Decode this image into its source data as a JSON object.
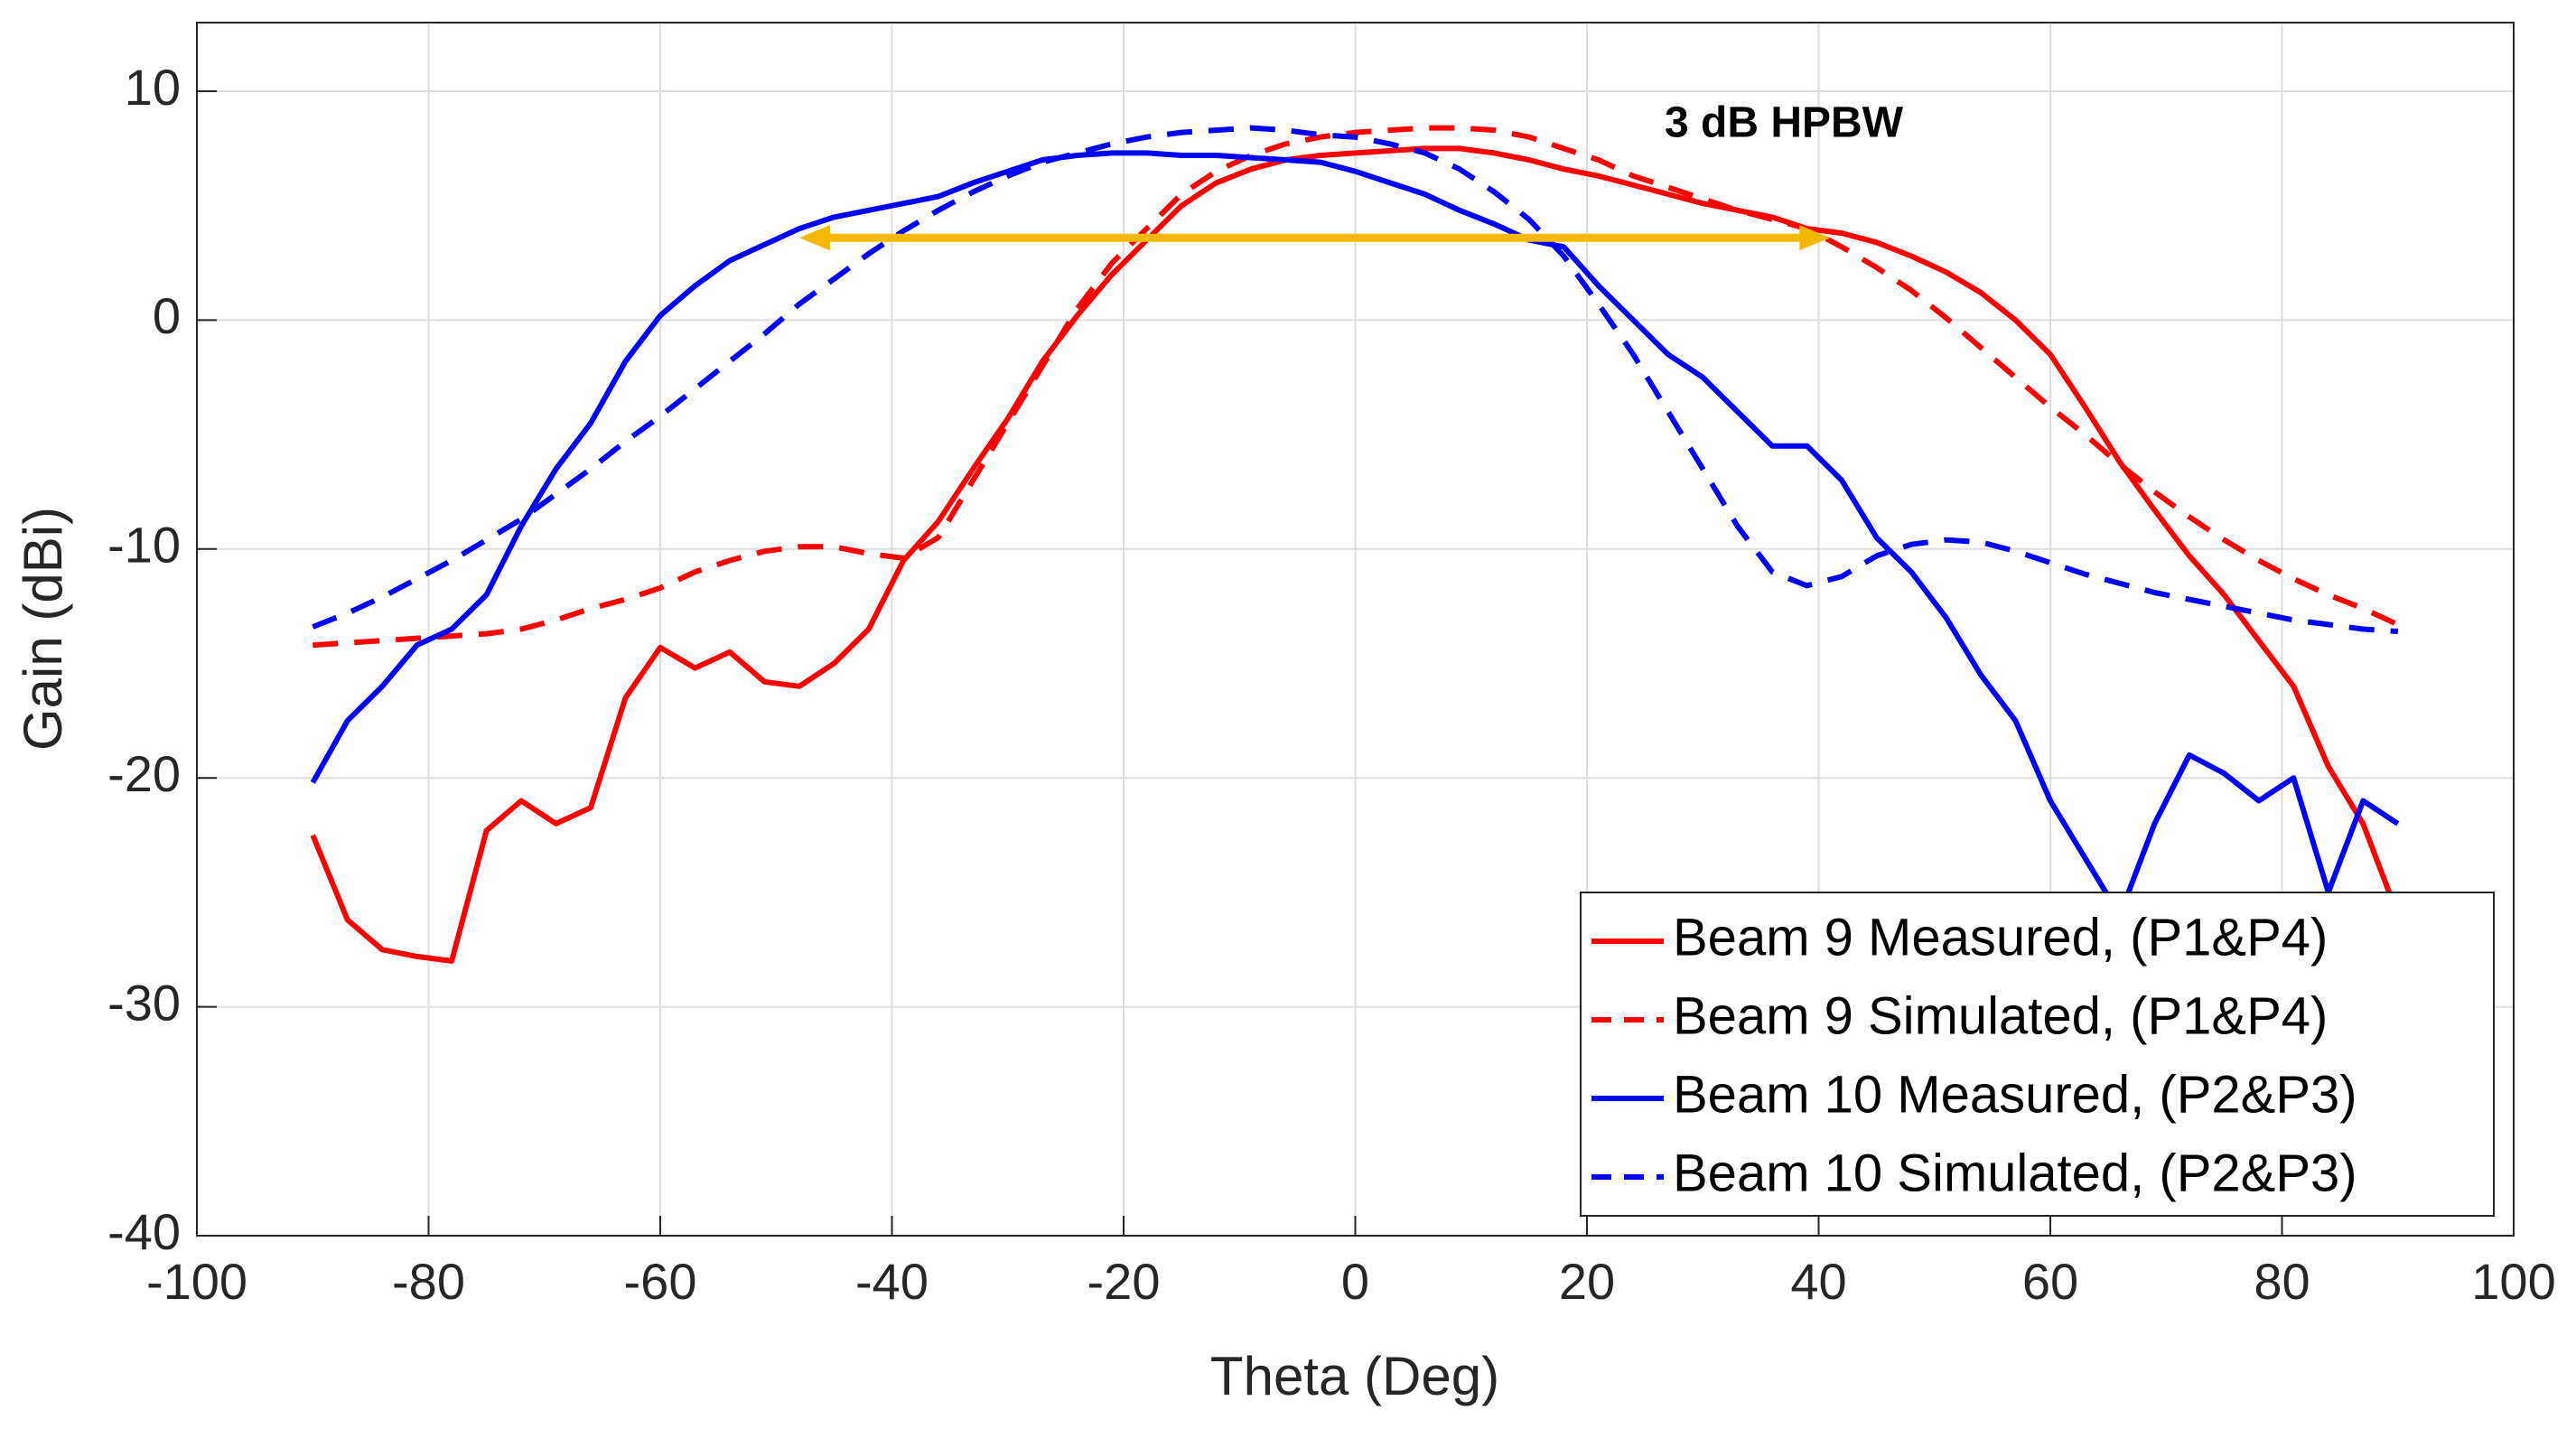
{
  "chart_data": {
    "type": "line",
    "xlabel": "Theta (Deg)",
    "ylabel": "Gain (dBi)",
    "x": [
      -90,
      -87,
      -84,
      -81,
      -78,
      -75,
      -72,
      -69,
      -66,
      -63,
      -60,
      -57,
      -54,
      -51,
      -48,
      -45,
      -42,
      -39,
      -36,
      -33,
      -30,
      -27,
      -24,
      -21,
      -18,
      -15,
      -12,
      -9,
      -6,
      -3,
      0,
      3,
      6,
      9,
      12,
      15,
      18,
      21,
      24,
      27,
      30,
      33,
      36,
      39,
      42,
      45,
      48,
      51,
      54,
      57,
      60,
      63,
      66,
      69,
      72,
      75,
      78,
      81,
      84,
      87,
      90
    ],
    "series": [
      {
        "name": "Beam 9 Measured, (P1&P4)",
        "color": "#ff0000",
        "dash": false,
        "values": [
          -22.5,
          -26.2,
          -27.5,
          -27.8,
          -28,
          -22.3,
          -21,
          -22,
          -21.3,
          -16.5,
          -14.3,
          -15.2,
          -14.5,
          -15.8,
          -16,
          -15,
          -13.5,
          -10.5,
          -8.8,
          -6.5,
          -4.3,
          -1.8,
          0.2,
          2,
          3.5,
          5,
          6,
          6.6,
          7,
          7.2,
          7.3,
          7.4,
          7.5,
          7.5,
          7.3,
          7,
          6.6,
          6.3,
          5.9,
          5.5,
          5.1,
          4.8,
          4.5,
          4,
          3.8,
          3.4,
          2.8,
          2.1,
          1.2,
          0,
          -1.5,
          -3.8,
          -6.2,
          -8.3,
          -10.3,
          -12,
          -14,
          -16,
          -19.5,
          -22,
          -26
        ]
      },
      {
        "name": "Beam 9 Simulated, (P1&P4)",
        "color": "#ff0000",
        "dash": true,
        "values": [
          -14.2,
          -14.1,
          -14,
          -13.9,
          -13.8,
          -13.7,
          -13.5,
          -13.1,
          -12.6,
          -12.2,
          -11.7,
          -11,
          -10.5,
          -10.1,
          -9.9,
          -9.9,
          -10.2,
          -10.4,
          -9.5,
          -7,
          -4.5,
          -2,
          0.5,
          2.5,
          4,
          5.5,
          6.5,
          7.2,
          7.7,
          8,
          8.2,
          8.3,
          8.4,
          8.4,
          8.3,
          8,
          7.5,
          7,
          6.3,
          5.8,
          5.3,
          4.8,
          4.4,
          4,
          3.2,
          2.3,
          1.3,
          0.1,
          -1.2,
          -2.5,
          -3.8,
          -5,
          -6.3,
          -7.5,
          -8.6,
          -9.6,
          -10.5,
          -11.3,
          -12,
          -12.6,
          -13.3
        ]
      },
      {
        "name": "Beam 10 Measured, (P2&P3)",
        "color": "#0000ff",
        "dash": false,
        "values": [
          -20.2,
          -17.5,
          -16,
          -14.2,
          -13.5,
          -12,
          -9,
          -6.5,
          -4.5,
          -1.8,
          0.2,
          1.5,
          2.6,
          3.3,
          4,
          4.5,
          4.8,
          5.1,
          5.4,
          6,
          6.5,
          7,
          7.2,
          7.3,
          7.3,
          7.2,
          7.2,
          7.1,
          7,
          6.9,
          6.5,
          6,
          5.5,
          4.8,
          4.2,
          3.5,
          3.2,
          1.5,
          0,
          -1.5,
          -2.5,
          -4,
          -5.5,
          -5.5,
          -7,
          -9.5,
          -11,
          -13,
          -15.5,
          -17.5,
          -21,
          -23.5,
          -26,
          -22,
          -19,
          -19.8,
          -21,
          -20,
          -25,
          -21,
          -22
        ]
      },
      {
        "name": "Beam 10 Simulated, (P2&P3)",
        "color": "#0000ff",
        "dash": true,
        "values": [
          -13.4,
          -12.8,
          -12.1,
          -11.3,
          -10.5,
          -9.6,
          -8.7,
          -7.6,
          -6.5,
          -5.3,
          -4.2,
          -3,
          -1.8,
          -0.6,
          0.7,
          1.8,
          2.9,
          3.9,
          4.8,
          5.6,
          6.3,
          6.9,
          7.3,
          7.7,
          8,
          8.2,
          8.3,
          8.4,
          8.3,
          8.1,
          8,
          7.7,
          7.3,
          6.6,
          5.6,
          4.4,
          2.8,
          0.7,
          -1.5,
          -4,
          -6.5,
          -9,
          -11,
          -11.6,
          -11.2,
          -10.3,
          -9.8,
          -9.6,
          -9.7,
          -10.1,
          -10.6,
          -11.1,
          -11.5,
          -11.9,
          -12.2,
          -12.5,
          -12.8,
          -13.1,
          -13.3,
          -13.5,
          -13.6
        ]
      }
    ],
    "annotations": [
      {
        "text": "3 dB HPBW",
        "x": 37,
        "y": 8.5
      }
    ],
    "arrow": {
      "x": [
        -48,
        41
      ],
      "y": 3.6,
      "color": "#f5b800"
    },
    "xlim": [
      -100,
      100
    ],
    "xticks": [
      -100,
      -80,
      -60,
      -40,
      -20,
      0,
      20,
      40,
      60,
      80,
      100
    ],
    "ylim": [
      -40,
      13
    ],
    "yticks": [
      -40,
      -30,
      -20,
      -10,
      0,
      10
    ],
    "grid": true,
    "legend": "lower right"
  }
}
